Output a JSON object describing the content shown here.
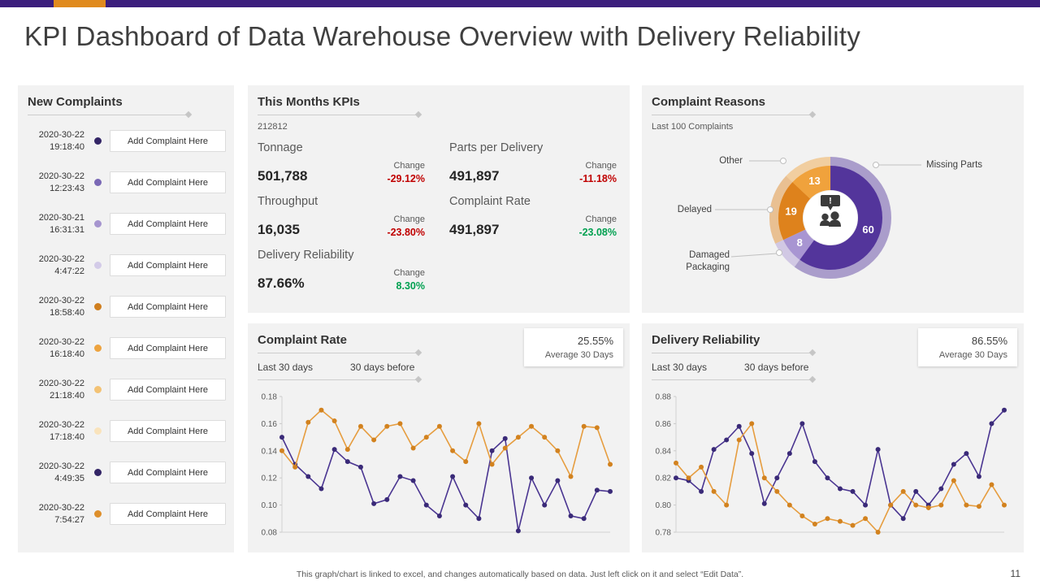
{
  "slide": {
    "title": "KPI Dashboard of Data Warehouse Overview with Delivery Reliability",
    "footer": "This graph/chart is linked to excel, and changes automatically based on data. Just left click on it and select “Edit Data”.",
    "page_number": "11"
  },
  "colors": {
    "accent_purple": "#3B1E7C",
    "accent_orange": "#E08A1E",
    "negative": "#C00000",
    "positive": "#00A050"
  },
  "new_complaints": {
    "title": "New Complaints",
    "add_button_label": "Add Complaint Here",
    "items": [
      {
        "date": "2020-30-22",
        "time": "19:18:40",
        "color": "#332566"
      },
      {
        "date": "2020-30-22",
        "time": "12:23:43",
        "color": "#7A68B5"
      },
      {
        "date": "2020-30-21",
        "time": "16:31:31",
        "color": "#A695CF"
      },
      {
        "date": "2020-30-22",
        "time": "4:47:22",
        "color": "#D3CBE8"
      },
      {
        "date": "2020-30-22",
        "time": "18:58:40",
        "color": "#D07F1F"
      },
      {
        "date": "2020-30-22",
        "time": "16:18:40",
        "color": "#EDA33F"
      },
      {
        "date": "2020-30-22",
        "time": "21:18:40",
        "color": "#F3C274"
      },
      {
        "date": "2020-30-22",
        "time": "17:18:40",
        "color": "#F9E3BC"
      },
      {
        "date": "2020-30-22",
        "time": "4:49:35",
        "color": "#332566"
      },
      {
        "date": "2020-30-22",
        "time": "7:54:27",
        "color": "#DE8F2B"
      }
    ]
  },
  "kpis": {
    "title": "This Months KPIs",
    "code": "212812",
    "change_label": "Change",
    "left": [
      {
        "label": "Tonnage",
        "value": "501,788",
        "change": "-29.12%",
        "change_color": "#C00000"
      },
      {
        "label": "Throughput",
        "value": "16,035",
        "change": "-23.80%",
        "change_color": "#C00000"
      },
      {
        "label": "Delivery Reliability",
        "value": "87.66%",
        "change": "8.30%",
        "change_color": "#00A050"
      }
    ],
    "right": [
      {
        "label": "Parts per Delivery",
        "value": "491,897",
        "change": "-11.18%",
        "change_color": "#C00000"
      },
      {
        "label": "Complaint Rate",
        "value": "491,897",
        "change": "-23.08%",
        "change_color": "#00A050"
      }
    ]
  },
  "complaint_reasons": {
    "title": "Complaint Reasons",
    "subtitle": "Last 100 Complaints"
  },
  "complaint_rate_panel": {
    "title": "Complaint Rate",
    "legend": [
      "Last 30 days",
      "30 days before"
    ],
    "average_value": "25.55%",
    "average_label": "Average 30 Days"
  },
  "delivery_reliability_panel": {
    "title": "Delivery Reliability",
    "legend": [
      "Last 30 days",
      "30 days before"
    ],
    "average_value": "86.55%",
    "average_label": "Average 30 Days"
  },
  "chart_data": [
    {
      "id": "complaint-reasons-donut",
      "type": "pie",
      "title": "Complaint Reasons",
      "subtitle": "Last 100 Complaints",
      "segments": [
        {
          "label": "Missing Parts",
          "value": 60,
          "color": "#53359B"
        },
        {
          "label": "Damaged Packaging",
          "value": 8,
          "color": "#A895D2"
        },
        {
          "label": "Delayed",
          "value": 19,
          "color": "#DE821C"
        },
        {
          "label": "Other",
          "value": 13,
          "color": "#F0A23C"
        }
      ]
    },
    {
      "id": "complaint-rate-line",
      "type": "line",
      "title": "Complaint Rate",
      "ylim": [
        0.08,
        0.18
      ],
      "yticks": [
        "0.18",
        "0.16",
        "0.14",
        "0.12",
        "0.10",
        "0.08"
      ],
      "series": [
        {
          "name": "Last 30 days",
          "color": "#4A3591",
          "dot_color": "#3A2A78",
          "values": [
            0.15,
            0.13,
            0.121,
            0.112,
            0.141,
            0.132,
            0.128,
            0.101,
            0.104,
            0.121,
            0.118,
            0.1,
            0.092,
            0.121,
            0.1,
            0.09,
            0.14,
            0.149,
            0.081,
            0.12,
            0.1,
            0.118,
            0.092,
            0.09,
            0.111,
            0.11
          ]
        },
        {
          "name": "30 days before",
          "color": "#E69D3F",
          "dot_color": "#D2821F",
          "values": [
            0.14,
            0.128,
            0.161,
            0.17,
            0.162,
            0.141,
            0.158,
            0.148,
            0.158,
            0.16,
            0.142,
            0.15,
            0.158,
            0.14,
            0.132,
            0.16,
            0.13,
            0.142,
            0.15,
            0.158,
            0.15,
            0.14,
            0.121,
            0.158,
            0.157,
            0.13
          ]
        }
      ]
    },
    {
      "id": "delivery-reliability-line",
      "type": "line",
      "title": "Delivery Reliability",
      "ylim": [
        0.78,
        0.88
      ],
      "yticks": [
        "0.88",
        "0.86",
        "0.84",
        "0.82",
        "0.80",
        "0.78"
      ],
      "series": [
        {
          "name": "Last 30 days",
          "color": "#4A3591",
          "dot_color": "#3A2A78",
          "values": [
            0.82,
            0.818,
            0.81,
            0.841,
            0.848,
            0.858,
            0.838,
            0.801,
            0.82,
            0.838,
            0.86,
            0.832,
            0.82,
            0.812,
            0.81,
            0.8,
            0.841,
            0.8,
            0.79,
            0.81,
            0.8,
            0.812,
            0.83,
            0.838,
            0.821,
            0.86,
            0.87
          ]
        },
        {
          "name": "30 days before",
          "color": "#E69D3F",
          "dot_color": "#D2821F",
          "values": [
            0.831,
            0.82,
            0.828,
            0.81,
            0.8,
            0.848,
            0.86,
            0.82,
            0.81,
            0.8,
            0.792,
            0.786,
            0.79,
            0.788,
            0.785,
            0.79,
            0.78,
            0.8,
            0.81,
            0.8,
            0.798,
            0.8,
            0.818,
            0.8,
            0.799,
            0.815,
            0.8
          ]
        }
      ]
    }
  ]
}
